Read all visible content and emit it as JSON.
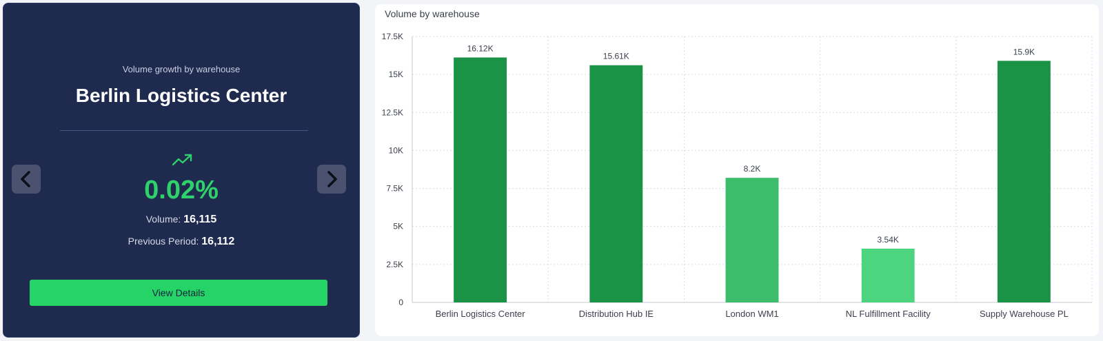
{
  "card": {
    "subtitle": "Volume growth by warehouse",
    "title": "Berlin Logistics Center",
    "growth": "0.02%",
    "volume_label": "Volume:",
    "volume_value": "16,115",
    "previous_label": "Previous Period:",
    "previous_value": "16,112",
    "button_label": "View Details",
    "trend_icon": "trending-up-icon",
    "prev_icon": "chevron-left-icon",
    "next_icon": "chevron-right-icon",
    "growth_color": "#2fd16a",
    "button_color": "#25d366"
  },
  "chart_data": {
    "type": "bar",
    "title": "Volume by warehouse",
    "categories": [
      "Berlin Logistics Center",
      "Distribution Hub IE",
      "London WM1",
      "NL Fulfillment Facility",
      "Supply Warehouse PL"
    ],
    "values": [
      16120,
      15610,
      8200,
      3540,
      15900
    ],
    "data_labels": [
      "16.12K",
      "15.61K",
      "8.2K",
      "3.54K",
      "15.9K"
    ],
    "bar_colors": [
      "#1b9347",
      "#1b9347",
      "#3bbd6b",
      "#4cd47e",
      "#1b9347"
    ],
    "ylim": [
      0,
      17500
    ],
    "yticks": [
      0,
      2500,
      5000,
      7500,
      10000,
      12500,
      15000,
      17500
    ],
    "ytick_labels": [
      "0",
      "2.5K",
      "5K",
      "7.5K",
      "10K",
      "12.5K",
      "15K",
      "17.5K"
    ],
    "grid": true,
    "xlabel": "",
    "ylabel": ""
  }
}
